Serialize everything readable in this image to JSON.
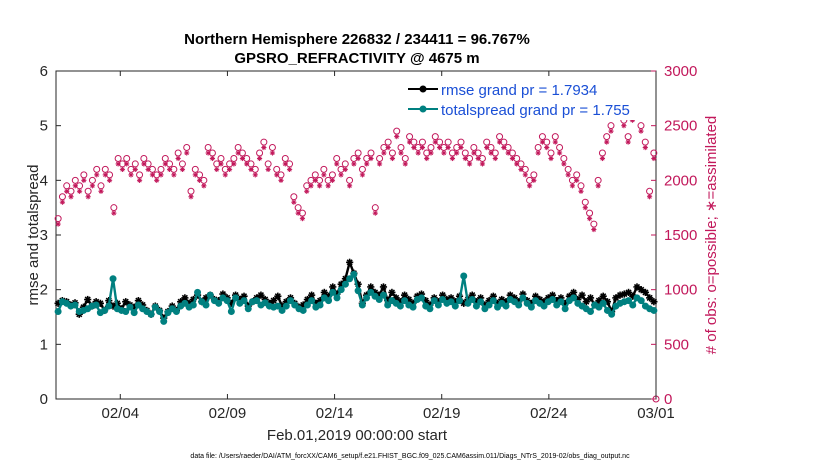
{
  "chart_data": {
    "type": "line",
    "title": "Northern Hemisphere 226832 / 234411 = 96.767%",
    "subtitle": "GPSRO_REFRACTIVITY @ 4675 m",
    "xlabel": "Feb.01,2019 00:00:00 start",
    "ylabel": "rmse and totalspread",
    "ylabel_right": "# of obs: o=possible; ∗=assimilated",
    "xlim": [
      0,
      28
    ],
    "ylim": [
      0,
      6
    ],
    "ylim_right": [
      0,
      3000
    ],
    "x_ticks": [
      {
        "day": 3,
        "label": "02/04"
      },
      {
        "day": 8,
        "label": "02/09"
      },
      {
        "day": 13,
        "label": "02/14"
      },
      {
        "day": 18,
        "label": "02/19"
      },
      {
        "day": 23,
        "label": "02/24"
      },
      {
        "day": 28,
        "label": "03/01"
      }
    ],
    "y_ticks": [
      "0",
      "1",
      "2",
      "3",
      "4",
      "5",
      "6"
    ],
    "y_ticks_right": [
      "0",
      "500",
      "1000",
      "1500",
      "2000",
      "2500",
      "3000"
    ],
    "legend": [
      "rmse grand pr = 1.7934",
      "totalspread grand pr = 1.755"
    ],
    "legend_position": "top-right",
    "grid": false,
    "series": [
      {
        "name": "rmse",
        "color": "#000000",
        "values": [
          1.75,
          1.8,
          1.78,
          1.72,
          1.76,
          1.55,
          1.68,
          1.82,
          1.7,
          1.78,
          1.75,
          1.62,
          1.8,
          1.7,
          1.75,
          1.65,
          1.78,
          1.72,
          1.68,
          1.8,
          1.72,
          1.62,
          1.55,
          1.7,
          1.62,
          1.48,
          1.6,
          1.7,
          1.62,
          1.78,
          1.85,
          1.75,
          1.82,
          1.9,
          1.78,
          1.85,
          1.9,
          1.82,
          1.8,
          1.92,
          1.85,
          1.75,
          1.9,
          1.82,
          1.88,
          1.7,
          1.78,
          1.85,
          1.9,
          1.82,
          1.75,
          1.8,
          1.88,
          1.7,
          1.78,
          1.85,
          1.75,
          1.68,
          1.72,
          1.82,
          1.9,
          1.75,
          1.8,
          1.95,
          1.88,
          2.05,
          1.92,
          2.1,
          2.2,
          2.5,
          2.3,
          2.1,
          1.75,
          1.9,
          2.05,
          1.95,
          1.9,
          2.05,
          1.8,
          1.95,
          1.85,
          1.78,
          1.9,
          1.82,
          1.75,
          1.88,
          1.92,
          1.8,
          1.72,
          1.85,
          1.78,
          1.9,
          1.82,
          1.85,
          1.78,
          1.88,
          1.75,
          1.82,
          1.9,
          1.78,
          1.85,
          1.72,
          1.8,
          1.88,
          1.75,
          1.82,
          1.78,
          1.9,
          1.85,
          1.78,
          1.92,
          1.8,
          1.75,
          1.88,
          1.82,
          1.78,
          1.85,
          1.9,
          1.8,
          1.85,
          1.75,
          1.88,
          1.95,
          1.82,
          1.9,
          1.78,
          1.85,
          1.72,
          1.8,
          1.88,
          1.78,
          1.6,
          1.85,
          1.9,
          1.92,
          1.95,
          1.88,
          2.05,
          2.0,
          1.95,
          1.85,
          1.78
        ]
      },
      {
        "name": "totalspread",
        "color": "#008080",
        "values": [
          1.6,
          1.78,
          1.75,
          1.7,
          1.72,
          1.6,
          1.62,
          1.65,
          1.7,
          1.72,
          1.58,
          1.62,
          1.7,
          2.2,
          1.65,
          1.62,
          1.6,
          1.68,
          1.58,
          1.72,
          1.65,
          1.6,
          1.55,
          1.68,
          1.6,
          1.42,
          1.58,
          1.65,
          1.6,
          1.7,
          1.75,
          1.68,
          1.72,
          1.95,
          1.78,
          1.72,
          1.9,
          1.8,
          1.75,
          1.85,
          1.8,
          1.6,
          1.85,
          1.75,
          1.8,
          1.65,
          1.78,
          1.8,
          1.72,
          1.76,
          1.7,
          1.68,
          1.7,
          1.62,
          1.7,
          1.8,
          1.72,
          1.65,
          1.62,
          1.72,
          1.8,
          1.68,
          1.72,
          1.85,
          1.8,
          1.95,
          1.85,
          2.0,
          2.1,
          2.2,
          2.28,
          1.98,
          1.72,
          1.85,
          1.95,
          1.88,
          1.82,
          1.9,
          1.72,
          1.8,
          1.75,
          1.7,
          1.8,
          1.72,
          1.68,
          1.82,
          1.85,
          1.7,
          1.65,
          1.8,
          1.72,
          1.82,
          1.75,
          1.78,
          1.7,
          1.8,
          2.25,
          1.75,
          1.82,
          1.7,
          1.78,
          1.65,
          1.72,
          1.8,
          1.68,
          1.75,
          1.7,
          1.82,
          1.78,
          1.72,
          1.85,
          1.75,
          1.68,
          1.8,
          1.75,
          1.7,
          1.78,
          1.82,
          1.72,
          1.78,
          1.65,
          1.8,
          1.85,
          1.75,
          1.7,
          1.65,
          1.6,
          1.72,
          1.68,
          1.75,
          1.62,
          1.55,
          1.7,
          1.75,
          1.78,
          1.8,
          1.72,
          1.85,
          1.8,
          1.7,
          1.65,
          1.62
        ]
      },
      {
        "name": "obs possible",
        "color": "#c2185b",
        "axis": "right",
        "values": [
          1650,
          1850,
          1950,
          1900,
          2000,
          1950,
          2050,
          1900,
          2000,
          2100,
          1950,
          2100,
          2050,
          1750,
          2200,
          2150,
          2200,
          2100,
          2150,
          2050,
          2200,
          2150,
          2100,
          2050,
          2100,
          2200,
          2150,
          2100,
          2250,
          2150,
          2300,
          1900,
          2100,
          2050,
          2000,
          2300,
          2250,
          2150,
          2200,
          2100,
          2150,
          2200,
          2300,
          2250,
          2200,
          2150,
          2100,
          2250,
          2350,
          2150,
          2300,
          2100,
          2050,
          2200,
          2150,
          1850,
          1750,
          1700,
          1950,
          2000,
          2050,
          2000,
          2100,
          2000,
          2050,
          2200,
          2100,
          2150,
          2000,
          2200,
          2250,
          2100,
          2200,
          2250,
          1750,
          2200,
          2300,
          2350,
          2250,
          2450,
          2300,
          2200,
          2400,
          2350,
          2300,
          2350,
          2250,
          2300,
          2400,
          2350,
          2300,
          2350,
          2250,
          2300,
          2350,
          2250,
          2200,
          2300,
          2250,
          2200,
          2350,
          2300,
          2250,
          2400,
          2350,
          2300,
          2250,
          2200,
          2150,
          2100,
          2000,
          2050,
          2300,
          2400,
          2350,
          2250,
          2400,
          2300,
          2200,
          2100,
          2000,
          2050,
          1950,
          1800,
          1700,
          1600,
          2000,
          2250,
          2400,
          2500,
          2700,
          2650,
          2550,
          2400,
          2600,
          2700,
          2500,
          2350,
          1900,
          2250
        ]
      },
      {
        "name": "obs assimilated",
        "color": "#c2185b",
        "axis": "right",
        "values": [
          1600,
          1800,
          1900,
          1850,
          1950,
          1900,
          2000,
          1850,
          1950,
          2050,
          1900,
          2050,
          2000,
          1700,
          2150,
          2100,
          2150,
          2050,
          2100,
          2000,
          2150,
          2100,
          2050,
          2000,
          2050,
          2150,
          2100,
          2050,
          2200,
          2100,
          2250,
          1850,
          2050,
          2000,
          1950,
          2250,
          2200,
          2100,
          2150,
          2050,
          2100,
          2150,
          2250,
          2200,
          2150,
          2100,
          2050,
          2200,
          2300,
          2100,
          2250,
          2050,
          2000,
          2150,
          2100,
          1800,
          1700,
          1650,
          1900,
          1950,
          2000,
          1950,
          2050,
          1950,
          2000,
          2150,
          2050,
          2100,
          1950,
          2150,
          2200,
          2050,
          2150,
          2200,
          1700,
          2150,
          2250,
          2300,
          2200,
          2400,
          2250,
          2150,
          2350,
          2300,
          2250,
          2300,
          2200,
          2250,
          2350,
          2300,
          2250,
          2300,
          2200,
          2250,
          2300,
          2200,
          2150,
          2250,
          2200,
          2150,
          2300,
          2250,
          2200,
          2350,
          2300,
          2250,
          2200,
          2150,
          2100,
          2050,
          1950,
          2000,
          2250,
          2350,
          2300,
          2200,
          2350,
          2250,
          2150,
          2050,
          1950,
          2000,
          1900,
          1750,
          1650,
          1550,
          1950,
          2200,
          2350,
          2450,
          2650,
          2600,
          2500,
          2350,
          2550,
          2650,
          2450,
          2300,
          1850,
          2200
        ]
      }
    ],
    "footnote": "data file: /Users/raeder/DAI/ATM_forcXX/CAM6_setup/f.e21.FHIST_BGC.f09_025.CAM6assim.011/Diags_NTrS_2019-02/obs_diag_output.nc"
  }
}
